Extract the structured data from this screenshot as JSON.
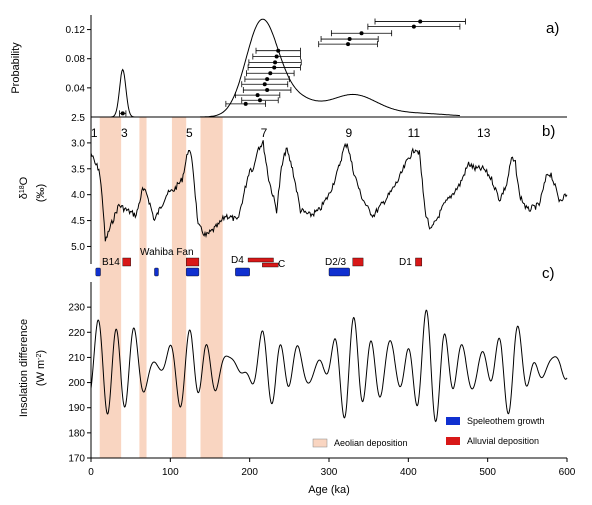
{
  "chart_data": [
    {
      "panel": "a)",
      "type": "line",
      "ylabel": "Probability",
      "ylim": [
        0,
        0.14
      ],
      "yticks": [
        "0.04",
        "0.08",
        "0.12"
      ],
      "pdf_peak_ka": [
        [
          40,
          0.065
        ],
        [
          215,
          0.127
        ],
        [
          330,
          0.03
        ]
      ],
      "dated_points": [
        {
          "x": 40,
          "xerr": 4,
          "y": 0.005
        },
        {
          "x": 195,
          "xerr": 25,
          "y": 0.018
        },
        {
          "x": 213,
          "xerr": 23,
          "y": 0.023
        },
        {
          "x": 210,
          "xerr": 28,
          "y": 0.03
        },
        {
          "x": 222,
          "xerr": 30,
          "y": 0.037
        },
        {
          "x": 219,
          "xerr": 29,
          "y": 0.045
        },
        {
          "x": 222,
          "xerr": 28,
          "y": 0.052
        },
        {
          "x": 226,
          "xerr": 30,
          "y": 0.06
        },
        {
          "x": 231,
          "xerr": 33,
          "y": 0.068
        },
        {
          "x": 232,
          "xerr": 33,
          "y": 0.075
        },
        {
          "x": 234,
          "xerr": 30,
          "y": 0.083
        },
        {
          "x": 236,
          "xerr": 28,
          "y": 0.091
        },
        {
          "x": 324,
          "xerr": 37,
          "y": 0.1
        },
        {
          "x": 326,
          "xerr": 36,
          "y": 0.107
        },
        {
          "x": 341,
          "xerr": 38,
          "y": 0.115
        },
        {
          "x": 407,
          "xerr": 58,
          "y": 0.124
        },
        {
          "x": 415,
          "xerr": 57,
          "y": 0.131
        }
      ]
    },
    {
      "panel": "b)",
      "type": "line",
      "ylabel": "δ18O (‰)",
      "ylim": [
        5.3,
        2.5
      ],
      "yticks": [
        "2.5",
        "3.0",
        "3.5",
        "4.0",
        "4.5",
        "5.0"
      ],
      "stages": [
        "1",
        "3",
        "5",
        "7",
        "9",
        "11",
        "13"
      ],
      "stage_x": [
        4,
        42,
        124,
        218,
        325,
        407,
        495
      ],
      "series_key_points": [
        [
          0,
          3.2
        ],
        [
          5,
          3.4
        ],
        [
          10,
          3.5
        ],
        [
          14,
          4.0
        ],
        [
          18,
          4.9
        ],
        [
          25,
          4.6
        ],
        [
          35,
          4.2
        ],
        [
          45,
          4.3
        ],
        [
          57,
          4.4
        ],
        [
          65,
          3.9
        ],
        [
          71,
          4.0
        ],
        [
          80,
          4.5
        ],
        [
          95,
          4.0
        ],
        [
          105,
          3.9
        ],
        [
          115,
          3.7
        ],
        [
          123,
          3.1
        ],
        [
          128,
          3.4
        ],
        [
          135,
          4.6
        ],
        [
          145,
          4.8
        ],
        [
          160,
          4.6
        ],
        [
          170,
          4.4
        ],
        [
          185,
          4.5
        ],
        [
          200,
          3.5
        ],
        [
          205,
          3.5
        ],
        [
          210,
          3.1
        ],
        [
          217,
          3.0
        ],
        [
          224,
          3.7
        ],
        [
          234,
          4.3
        ],
        [
          240,
          3.5
        ],
        [
          246,
          3.1
        ],
        [
          254,
          3.5
        ],
        [
          264,
          4.3
        ],
        [
          276,
          4.4
        ],
        [
          288,
          4.3
        ],
        [
          300,
          4.0
        ],
        [
          310,
          3.6
        ],
        [
          319,
          3.1
        ],
        [
          323,
          3.0
        ],
        [
          330,
          3.5
        ],
        [
          340,
          4.0
        ],
        [
          350,
          4.3
        ],
        [
          356,
          4.4
        ],
        [
          366,
          4.2
        ],
        [
          376,
          4.0
        ],
        [
          388,
          3.7
        ],
        [
          400,
          3.3
        ],
        [
          409,
          3.1
        ],
        [
          414,
          3.2
        ],
        [
          421,
          4.3
        ],
        [
          428,
          4.7
        ],
        [
          435,
          4.5
        ],
        [
          445,
          4.2
        ],
        [
          455,
          4.0
        ],
        [
          465,
          3.8
        ],
        [
          476,
          3.4
        ],
        [
          484,
          3.5
        ],
        [
          495,
          3.5
        ],
        [
          505,
          3.7
        ],
        [
          515,
          4.1
        ],
        [
          524,
          3.8
        ],
        [
          530,
          3.3
        ],
        [
          535,
          3.4
        ],
        [
          540,
          4.0
        ],
        [
          550,
          4.3
        ],
        [
          565,
          4.2
        ],
        [
          575,
          3.6
        ],
        [
          580,
          3.6
        ],
        [
          590,
          4.1
        ],
        [
          600,
          4.0
        ]
      ],
      "annotations": {
        "B14": "B14",
        "Wahiba Fan": "Wahiba Fan",
        "D4": "D4",
        "C": "C",
        "D2/3": "D2/3",
        "D1": "D1"
      },
      "speleothem_growth": [
        [
          6,
          12
        ],
        [
          80,
          85
        ],
        [
          120,
          136
        ],
        [
          182,
          200
        ],
        [
          300,
          326
        ]
      ],
      "alluvial_deposition": [
        [
          40,
          50
        ],
        [
          120,
          136
        ],
        [
          198,
          230
        ],
        [
          216,
          236
        ],
        [
          330,
          343
        ],
        [
          409,
          417
        ]
      ]
    },
    {
      "panel": "c)",
      "type": "line",
      "ylabel": "Insolation difference",
      "ylabel_units": "(W m-2)",
      "ylim": [
        170,
        240
      ],
      "yticks": [
        "170",
        "180",
        "190",
        "200",
        "210",
        "220",
        "230"
      ],
      "xlabel": "Age (ka)",
      "xlim": [
        0,
        600
      ],
      "xticks": [
        "0",
        "100",
        "200",
        "300",
        "400",
        "500",
        "600"
      ],
      "aeolian_deposition": [
        [
          11,
          38
        ],
        [
          61,
          70
        ],
        [
          102,
          120
        ],
        [
          138,
          166
        ]
      ]
    }
  ],
  "legend": {
    "speleothem": "Speleothem growth",
    "alluvial": "Alluvial deposition",
    "aeolian": "Aeolian deposition"
  },
  "colors": {
    "aeolian": "#f9d5c1",
    "speleothem": "#1030d0",
    "alluvial": "#d81818",
    "line": "#000000"
  }
}
